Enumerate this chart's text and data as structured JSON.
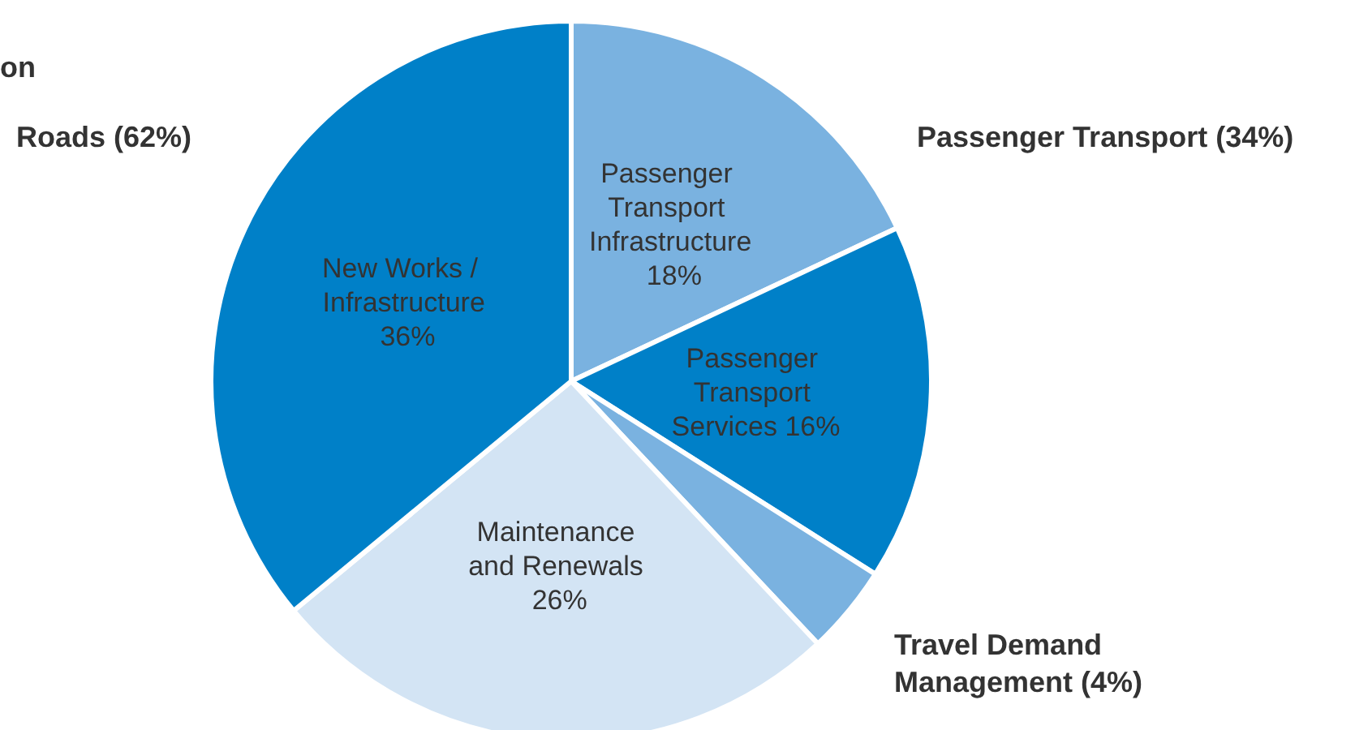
{
  "chart_data": {
    "type": "pie",
    "categories": [
      "Passenger Transport Infrastructure",
      "Passenger Transport Services",
      null,
      "Maintenance and Renewals",
      "New Works / Infrastructure"
    ],
    "values": [
      18,
      16,
      4,
      26,
      36
    ],
    "value_labels": [
      "18%",
      "16%",
      null,
      "26%",
      "36%"
    ],
    "colors": [
      "#7ab2e0",
      "#0080c8",
      "#7ab2e0",
      "#d3e4f4",
      "#0080c8"
    ],
    "legend": false,
    "annotations": [
      "on",
      "Roads (62%)",
      "Passenger Transport (34%)",
      "Travel Demand Management (4%)"
    ]
  }
}
